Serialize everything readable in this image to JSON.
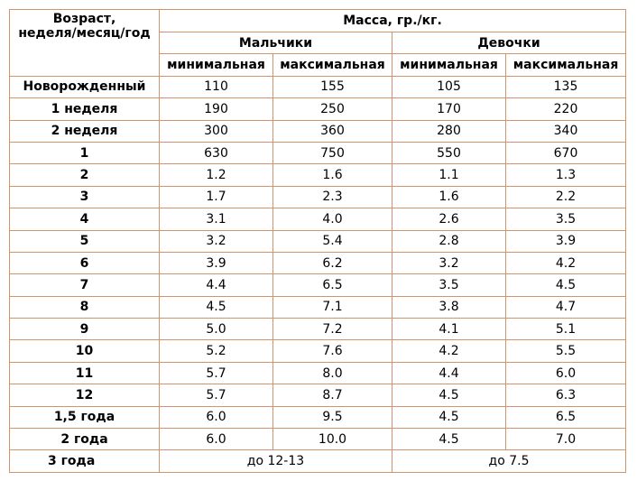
{
  "table": {
    "header": {
      "age": [
        "Возраст,",
        "неделя/месяц/год"
      ],
      "mass": "Масса, гр./кг.",
      "groups": [
        "Мальчики",
        "Девочки"
      ],
      "subheaders": [
        "минимальная",
        "максимальная",
        "минимальная",
        "максимальная"
      ]
    },
    "rows": [
      [
        "Новорожденный",
        "110",
        "155",
        "105",
        "135"
      ],
      [
        "1 неделя",
        "190",
        "250",
        "170",
        "220"
      ],
      [
        "2 неделя",
        "300",
        "360",
        "280",
        "340"
      ],
      [
        "1",
        "630",
        "750",
        "550",
        "670"
      ],
      [
        "2",
        "1.2",
        "1.6",
        "1.1",
        "1.3"
      ],
      [
        "3",
        "1.7",
        "2.3",
        "1.6",
        "2.2"
      ],
      [
        "4",
        "3.1",
        "4.0",
        "2.6",
        "3.5"
      ],
      [
        "5",
        "3.2",
        "5.4",
        "2.8",
        "3.9"
      ],
      [
        "6",
        "3.9",
        "6.2",
        "3.2",
        "4.2"
      ],
      [
        "7",
        "4.4",
        "6.5",
        "3.5",
        "4.5"
      ],
      [
        "8",
        "4.5",
        "7.1",
        "3.8",
        "4.7"
      ],
      [
        "9",
        "5.0",
        "7.2",
        "4.1",
        "5.1"
      ],
      [
        "10",
        "5.2",
        "7.6",
        "4.2",
        "5.5"
      ],
      [
        "11",
        "5.7",
        "8.0",
        "4.4",
        "6.0"
      ],
      [
        "12",
        "5.7",
        "8.7",
        "4.5",
        "6.3"
      ],
      [
        "1,5 года",
        "6.0",
        "9.5",
        "4.5",
        "6.5"
      ],
      [
        "2 года",
        "6.0",
        "10.0",
        "4.5",
        "7.0"
      ]
    ],
    "last_row": [
      "3 года",
      "до 12-13",
      "до 7.5"
    ]
  }
}
